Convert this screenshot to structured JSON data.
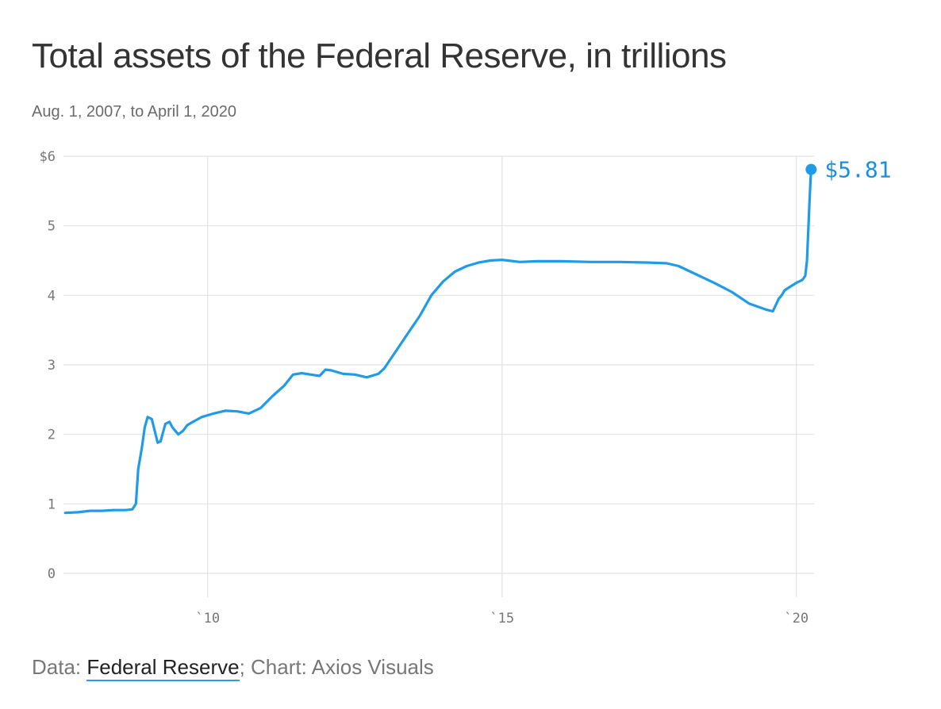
{
  "chart_data": {
    "type": "line",
    "title": "Total assets of the Federal Reserve, in trillions",
    "subtitle": "Aug. 1, 2007, to April 1, 2020",
    "xlabel": "",
    "ylabel": "",
    "ylim": [
      0,
      6
    ],
    "xlim": [
      2007.55,
      2020.3
    ],
    "y_ticks": [
      {
        "value": 0,
        "label": "0"
      },
      {
        "value": 1,
        "label": "1"
      },
      {
        "value": 2,
        "label": "2"
      },
      {
        "value": 3,
        "label": "3"
      },
      {
        "value": 4,
        "label": "4"
      },
      {
        "value": 5,
        "label": "5"
      },
      {
        "value": 6,
        "label": "$6"
      }
    ],
    "x_ticks": [
      {
        "value": 2010,
        "label": "`10"
      },
      {
        "value": 2015,
        "label": "`15"
      },
      {
        "value": 2020,
        "label": "`20"
      }
    ],
    "grid": true,
    "line_color": "#1f9be8",
    "end_label": "$5.81",
    "series": [
      {
        "x": [
          2007.58,
          2007.8,
          2008.0,
          2008.2,
          2008.4,
          2008.6,
          2008.72,
          2008.78,
          2008.82,
          2008.88,
          2008.93,
          2008.98,
          2009.05,
          2009.1,
          2009.15,
          2009.2,
          2009.28,
          2009.35,
          2009.4,
          2009.45,
          2009.5,
          2009.58,
          2009.65,
          2009.75,
          2009.9,
          2010.1,
          2010.3,
          2010.5,
          2010.7,
          2010.9,
          2011.1,
          2011.3,
          2011.45,
          2011.6,
          2011.75,
          2011.9,
          2012.0,
          2012.1,
          2012.3,
          2012.5,
          2012.7,
          2012.9,
          2013.0,
          2013.2,
          2013.4,
          2013.6,
          2013.8,
          2014.0,
          2014.2,
          2014.4,
          2014.6,
          2014.8,
          2015.0,
          2015.3,
          2015.6,
          2016.0,
          2016.5,
          2017.0,
          2017.5,
          2017.8,
          2018.0,
          2018.3,
          2018.6,
          2018.9,
          2019.2,
          2019.5,
          2019.6,
          2019.7,
          2019.75,
          2019.8,
          2019.85,
          2020.0,
          2020.05,
          2020.1,
          2020.15,
          2020.18,
          2020.2,
          2020.22,
          2020.24,
          2020.25
        ],
        "values": [
          0.87,
          0.88,
          0.9,
          0.9,
          0.91,
          0.91,
          0.92,
          1.0,
          1.5,
          1.8,
          2.1,
          2.25,
          2.22,
          2.05,
          1.88,
          1.9,
          2.15,
          2.18,
          2.1,
          2.05,
          2.0,
          2.05,
          2.13,
          2.18,
          2.25,
          2.3,
          2.34,
          2.33,
          2.3,
          2.38,
          2.55,
          2.7,
          2.86,
          2.88,
          2.86,
          2.84,
          2.93,
          2.92,
          2.87,
          2.86,
          2.82,
          2.87,
          2.95,
          3.2,
          3.45,
          3.7,
          4.0,
          4.2,
          4.34,
          4.42,
          4.47,
          4.5,
          4.51,
          4.48,
          4.49,
          4.49,
          4.48,
          4.48,
          4.47,
          4.46,
          4.42,
          4.3,
          4.18,
          4.05,
          3.88,
          3.79,
          3.77,
          3.95,
          4.0,
          4.07,
          4.1,
          4.18,
          4.2,
          4.22,
          4.28,
          4.5,
          4.9,
          5.3,
          5.65,
          5.81
        ]
      }
    ]
  },
  "footer": {
    "prefix": "Data: ",
    "source": "Federal Reserve",
    "suffix": "; Chart: Axios Visuals"
  }
}
